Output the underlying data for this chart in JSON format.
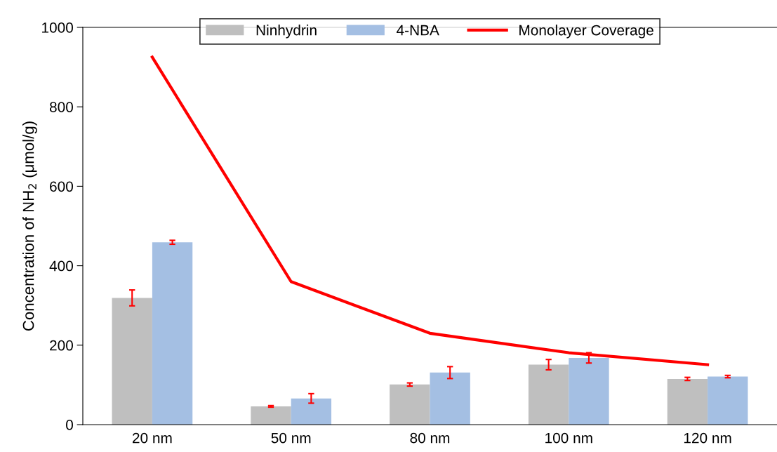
{
  "chart_data": {
    "type": "bar",
    "ylabel": "Concentration of NH$_{2}$ (μmol/g)",
    "categories": [
      "20 nm",
      "50 nm",
      "80 nm",
      "100 nm",
      "120 nm"
    ],
    "series": [
      {
        "name": "Ninhydrin",
        "color": "#bfbfbf",
        "values": [
          319,
          46,
          101,
          151,
          115
        ],
        "errors": [
          20,
          2,
          4,
          13,
          4
        ]
      },
      {
        "name": "4-NBA",
        "color": "#a4bfe3",
        "values": [
          459,
          66,
          131,
          168,
          121
        ],
        "errors": [
          5,
          12,
          15,
          13,
          3
        ]
      },
      {
        "name": "Monolayer Coverage",
        "type": "line",
        "color": "#ff0000",
        "values": [
          925,
          360,
          230,
          181,
          151
        ]
      }
    ],
    "ylim": [
      0,
      1000
    ],
    "yticks": [
      0,
      200,
      400,
      600,
      800,
      1000
    ],
    "grid": false,
    "legend": "top",
    "marker": "none",
    "line_style": "solid"
  }
}
